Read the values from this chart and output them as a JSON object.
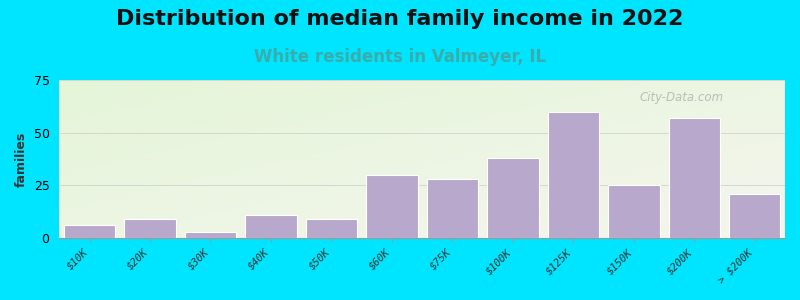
{
  "title": "Distribution of median family income in 2022",
  "subtitle": "White residents in Valmeyer, IL",
  "categories": [
    "$10K",
    "$20K",
    "$30K",
    "$40K",
    "$50K",
    "$60K",
    "$75K",
    "$100K",
    "$125K",
    "$150K",
    "$200K",
    "> $200K"
  ],
  "values": [
    6,
    9,
    3,
    11,
    9,
    30,
    28,
    38,
    60,
    25,
    57,
    21
  ],
  "bar_color": "#b8a8cc",
  "bar_edge_color": "#ffffff",
  "background_outer": "#00e5ff",
  "ylabel": "families",
  "ylim": [
    0,
    75
  ],
  "yticks": [
    0,
    25,
    50,
    75
  ],
  "title_fontsize": 16,
  "subtitle_fontsize": 12,
  "subtitle_color": "#3aacac",
  "watermark": "City-Data.com"
}
